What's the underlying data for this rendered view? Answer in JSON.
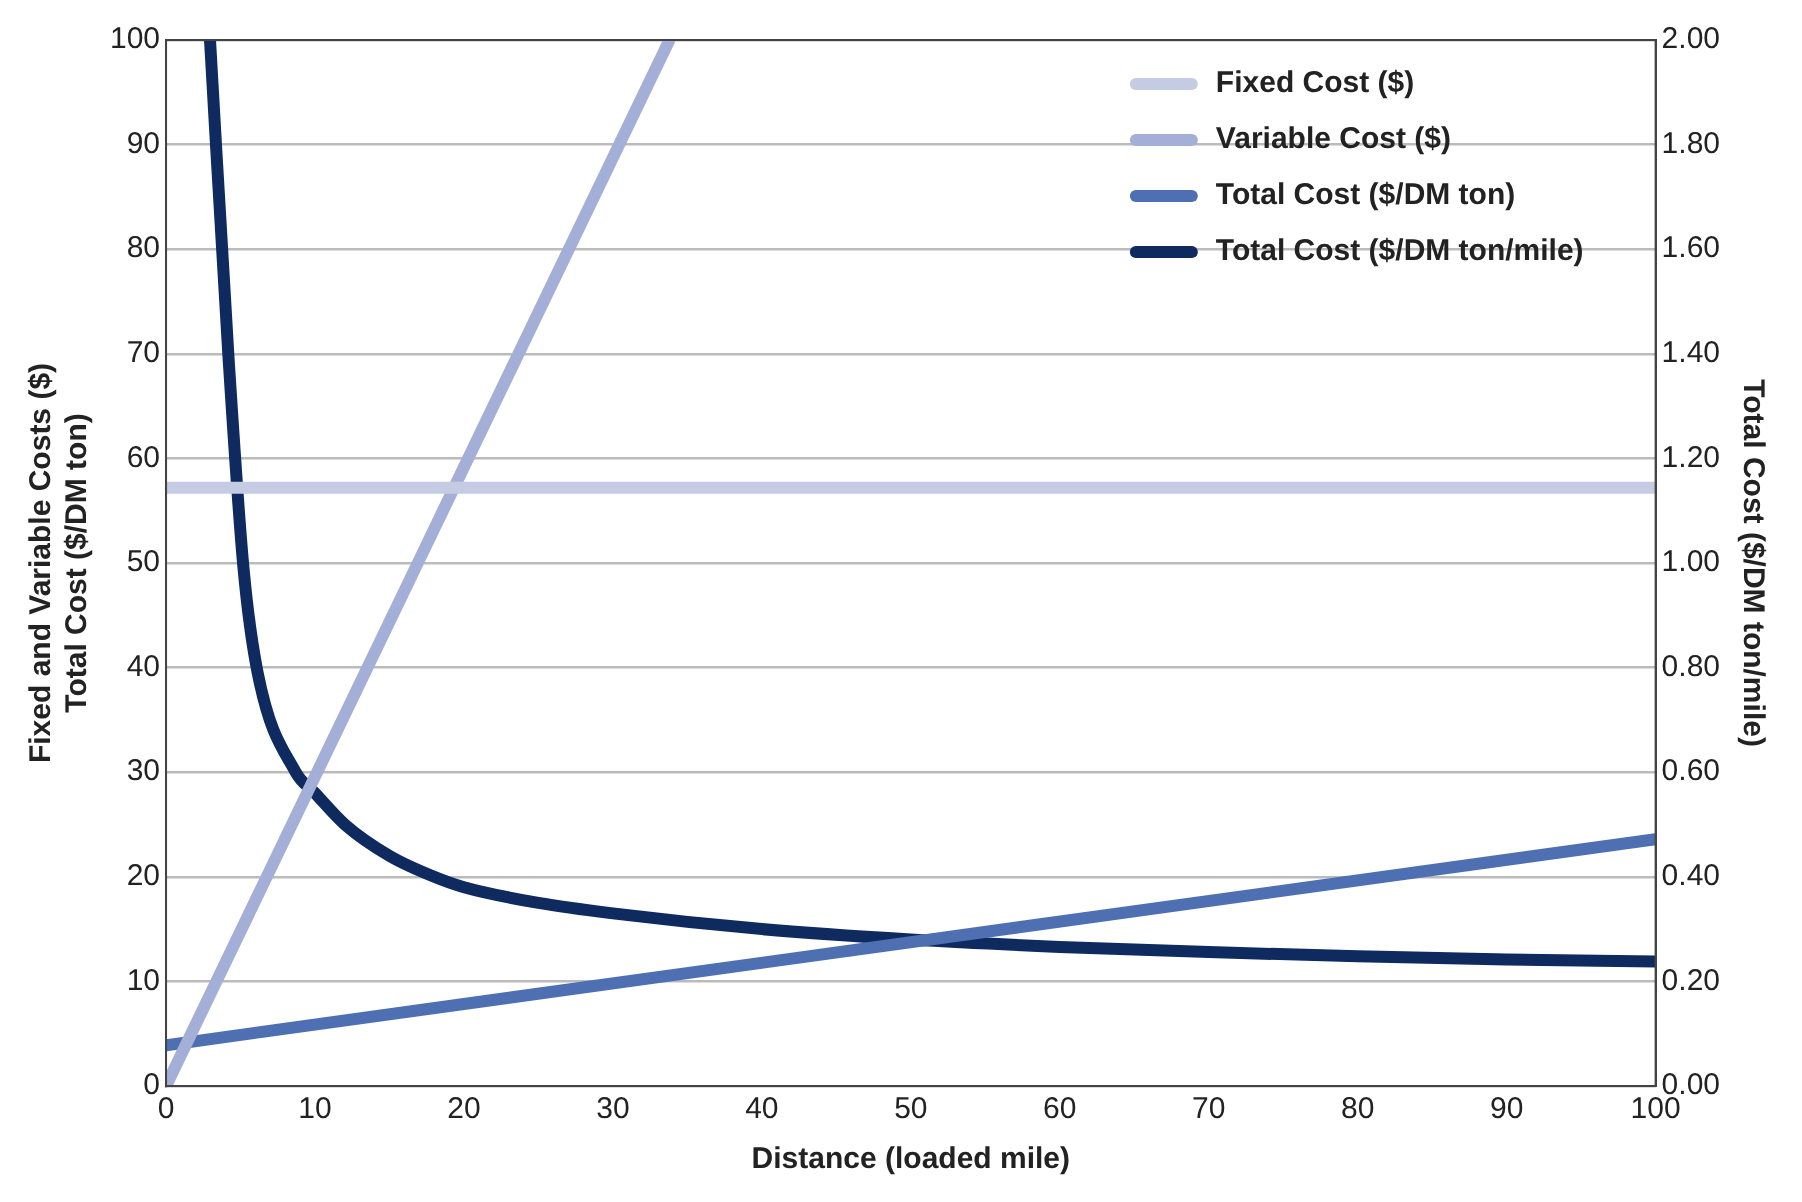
{
  "chart_data": {
    "type": "line",
    "xlabel": "Distance (loaded mile)",
    "ylabel": "Fixed and Variable Costs ($)\nTotal Cost ($/DM ton)",
    "y2label": "Total Cost ($/DM ton/mile)",
    "xlim": [
      0,
      100
    ],
    "xticks": [
      0,
      10,
      20,
      30,
      40,
      50,
      60,
      70,
      80,
      90,
      100
    ],
    "ylim": [
      0,
      100
    ],
    "yticks": [
      0,
      10,
      20,
      30,
      40,
      50,
      60,
      70,
      80,
      90,
      100
    ],
    "y2lim": [
      0,
      2
    ],
    "y2ticks": [
      {
        "value": 0,
        "label": "0.00"
      },
      {
        "value": 0.2,
        "label": "0.20"
      },
      {
        "value": 0.4,
        "label": "0.40"
      },
      {
        "value": 0.6,
        "label": "0.60"
      },
      {
        "value": 0.8,
        "label": "0.80"
      },
      {
        "value": 1,
        "label": "1.00"
      },
      {
        "value": 1.2,
        "label": "1.20"
      },
      {
        "value": 1.4,
        "label": "1.40"
      },
      {
        "value": 1.6,
        "label": "1.60"
      },
      {
        "value": 1.8,
        "label": "1.80"
      },
      {
        "value": 2,
        "label": "2.00"
      }
    ],
    "grid": "y",
    "legend": "top right",
    "marker": "none",
    "line_style": "solid",
    "series": [
      {
        "name": "Fixed Cost ($)",
        "color": "#c5cbe3",
        "x": [
          0,
          100
        ],
        "values": [
          57.2,
          57.2
        ]
      },
      {
        "name": "Variable Cost ($)",
        "color": "#a3afd6",
        "x": [
          0,
          33.8
        ],
        "values": [
          0,
          100
        ]
      },
      {
        "name": "Total Cost ($/DM ton)",
        "color": "#4f6fb3",
        "x": [
          0,
          100
        ],
        "values": [
          3.9,
          23.6
        ]
      },
      {
        "name": "Total Cost ($/DM ton/mile)",
        "color": "#0e2a5e",
        "axis": "y2",
        "x": [
          2.95,
          4.2,
          5.2,
          6.15,
          8.7,
          10,
          12,
          15,
          18,
          20,
          25,
          30,
          40,
          50,
          60,
          70,
          80,
          90,
          100
        ],
        "values": [
          2.0,
          1.39,
          0.99,
          0.79,
          0.6,
          0.56,
          0.5,
          0.44,
          0.4,
          0.38,
          0.35,
          0.33,
          0.3,
          0.28,
          0.266,
          0.256,
          0.248,
          0.242,
          0.238
        ]
      }
    ]
  }
}
